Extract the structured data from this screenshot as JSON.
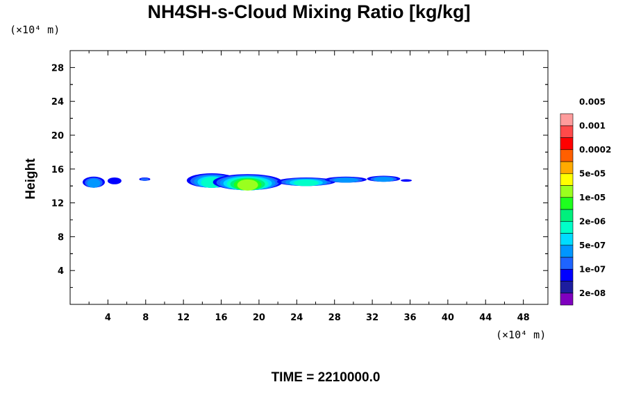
{
  "chart_data": {
    "type": "heatmap",
    "title": "NH4SH-s-Cloud Mixing Ratio [kg/kg]",
    "ylabel": "Height",
    "x_unit_label": "(×10⁴ m)",
    "y_unit_label": "(×10⁴ m)",
    "xlim": [
      0,
      50.6
    ],
    "ylim": [
      0,
      30
    ],
    "x_ticks": [
      4,
      8,
      12,
      16,
      20,
      24,
      28,
      32,
      36,
      40,
      44,
      48
    ],
    "y_ticks": [
      4,
      8,
      12,
      16,
      20,
      24,
      28
    ],
    "time_label": "TIME = 2210000.0",
    "colorbar": {
      "colors": [
        "#7f00bf",
        "#1d1d9f",
        "#0000ff",
        "#1e64ff",
        "#0096ff",
        "#00dcff",
        "#00ffc8",
        "#00f07d",
        "#1eff1e",
        "#9aff1e",
        "#ffff00",
        "#ffaa00",
        "#ff5f00",
        "#ff0000",
        "#ff4a4a",
        "#ff9c9c"
      ],
      "labels": [
        "2e-08",
        "1e-07",
        "5e-07",
        "2e-06",
        "1e-05",
        "5e-05",
        "0.0002",
        "0.001",
        "0.005"
      ]
    },
    "cloud_features": [
      {
        "x": 2.5,
        "y_top": 15.1,
        "y_bot": 13.8,
        "level": 4
      },
      {
        "x": 4.7,
        "y_top": 15.0,
        "y_bot": 14.2,
        "level": 2
      },
      {
        "x": 7.9,
        "y_top": 15.0,
        "y_bot": 14.6,
        "level": 3
      },
      {
        "x": 15.0,
        "y_top": 15.5,
        "y_bot": 13.8,
        "level": 6
      },
      {
        "x": 18.8,
        "y_top": 15.4,
        "y_bot": 13.5,
        "level": 9
      },
      {
        "x": 25.0,
        "y_top": 15.0,
        "y_bot": 14.0,
        "level": 6
      },
      {
        "x": 29.2,
        "y_top": 15.1,
        "y_bot": 14.4,
        "level": 4
      },
      {
        "x": 33.2,
        "y_top": 15.2,
        "y_bot": 14.5,
        "level": 4
      },
      {
        "x": 35.6,
        "y_top": 14.8,
        "y_bot": 14.5,
        "level": 2
      }
    ]
  }
}
